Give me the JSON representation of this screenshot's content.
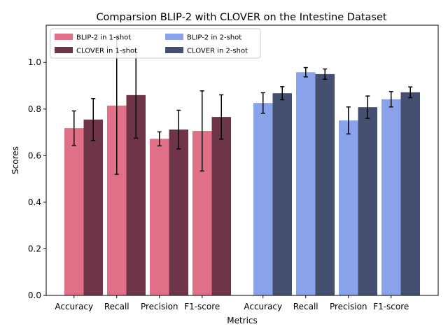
{
  "chart_data": {
    "type": "bar",
    "title": "Comparsion BLIP-2 with CLOVER on the Intestine Dataset",
    "xlabel": "Metrics",
    "ylabel": "Scores",
    "ylim": [
      0,
      1.16
    ],
    "yticks": [
      "0.0",
      "0.2",
      "0.4",
      "0.6",
      "0.8",
      "1.0"
    ],
    "grid": false,
    "legend_position": "top-left",
    "groups": [
      {
        "categories": [
          "Accuracy",
          "Recall",
          "Precision",
          "F1-score"
        ],
        "series": [
          {
            "name": "BLIP-2 in 1-shot",
            "color": "#e07088",
            "values": [
              0.718,
              0.815,
              0.672,
              0.706
            ],
            "errors": [
              0.074,
              0.295,
              0.03,
              0.172
            ]
          },
          {
            "name": "CLOVER in 1-shot",
            "color": "#6e3448",
            "values": [
              0.755,
              0.86,
              0.712,
              0.766
            ],
            "errors": [
              0.09,
              0.185,
              0.083,
              0.095
            ]
          }
        ]
      },
      {
        "categories": [
          "Accuracy",
          "Recall",
          "Precision",
          "F1-score"
        ],
        "series": [
          {
            "name": "BLIP-2 in 2-shot",
            "color": "#8aa2ea",
            "values": [
              0.826,
              0.958,
              0.751,
              0.842
            ],
            "errors": [
              0.044,
              0.02,
              0.058,
              0.033
            ]
          },
          {
            "name": "CLOVER in 2-shot",
            "color": "#454f70",
            "values": [
              0.868,
              0.95,
              0.808,
              0.872
            ],
            "errors": [
              0.028,
              0.022,
              0.048,
              0.023
            ]
          }
        ]
      }
    ],
    "legend": [
      {
        "label": "BLIP-2 in 1-shot",
        "color": "#e07088"
      },
      {
        "label": "CLOVER in 1-shot",
        "color": "#6e3448"
      },
      {
        "label": "BLIP-2 in 2-shot",
        "color": "#8aa2ea"
      },
      {
        "label": "CLOVER in 2-shot",
        "color": "#454f70"
      }
    ]
  }
}
